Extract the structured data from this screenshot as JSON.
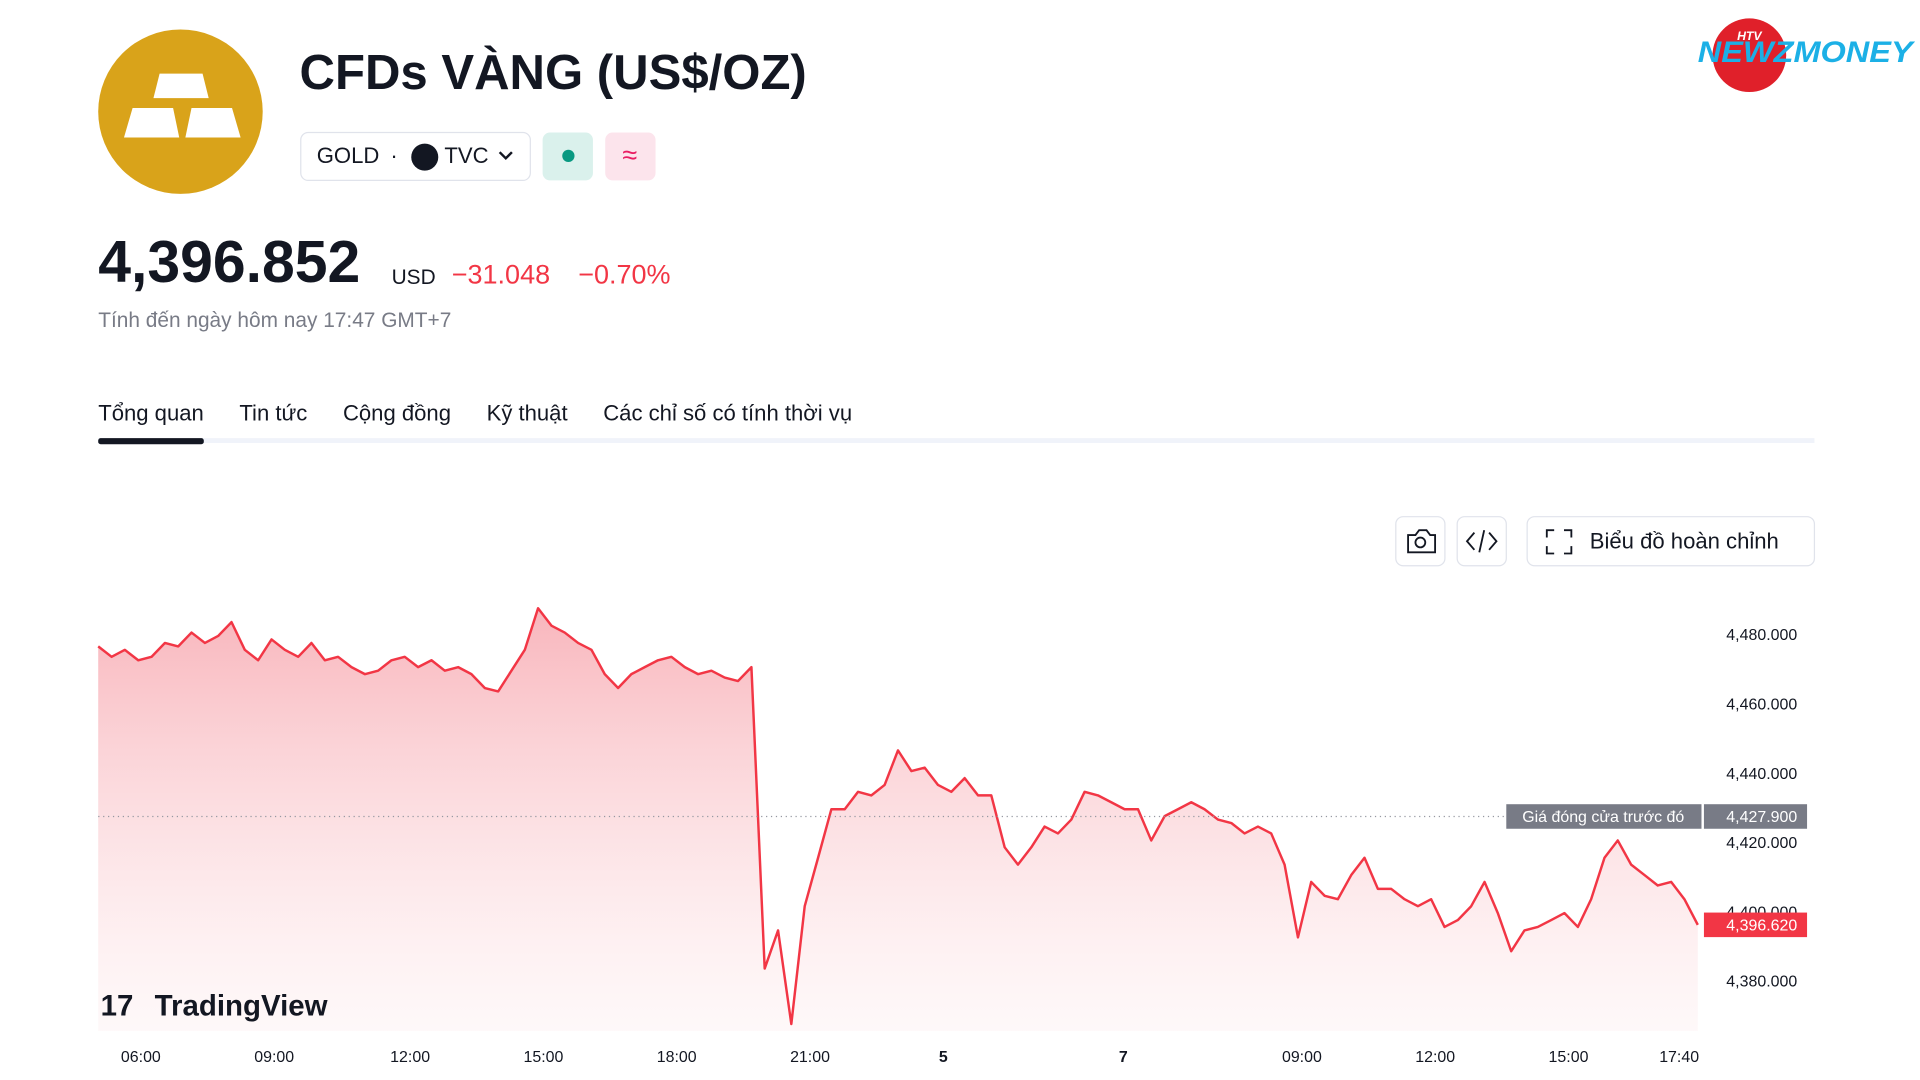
{
  "header": {
    "title": "CFDs VÀNG (US$/OZ)",
    "symbol": "GOLD",
    "exchange": "TVC",
    "badge": "≈"
  },
  "brand": {
    "name": "NEWZMONEY",
    "channel": "HTV"
  },
  "price": {
    "value": "4,396.852",
    "currency": "USD",
    "change": "−31.048",
    "change_percent": "−0.70%",
    "as_of": "Tính đến ngày hôm nay 17:47 GMT+7"
  },
  "tabs": [
    "Tổng quan",
    "Tin tức",
    "Cộng đồng",
    "Kỹ thuật",
    "Các chỉ số có tính thời vụ"
  ],
  "toolbar": {
    "full_chart": "Biểu đồ hoàn chỉnh"
  },
  "watermark": "TradingView",
  "chart_data": {
    "type": "line",
    "color": "#f23645",
    "xlim": [
      0,
      120
    ],
    "xticks": [
      {
        "value": 3.2,
        "label": "06:00"
      },
      {
        "value": 13.2,
        "label": "09:00"
      },
      {
        "value": 23.4,
        "label": "12:00"
      },
      {
        "value": 33.4,
        "label": "15:00"
      },
      {
        "value": 43.4,
        "label": "18:00"
      },
      {
        "value": 53.4,
        "label": "21:00"
      },
      {
        "value": 63.4,
        "label": "5"
      },
      {
        "value": 76.9,
        "label": "7"
      },
      {
        "value": 90.3,
        "label": "09:00"
      },
      {
        "value": 100.3,
        "label": "12:00"
      },
      {
        "value": 110.3,
        "label": "15:00"
      },
      {
        "value": 118.6,
        "label": "17:40"
      }
    ],
    "ylim": [
      4366,
      4490
    ],
    "yticks": [
      {
        "value": 4380,
        "label": "4,380.000"
      },
      {
        "value": 4400,
        "label": "4,400.000"
      },
      {
        "value": 4420,
        "label": "4,420.000"
      },
      {
        "value": 4440,
        "label": "4,440.000"
      },
      {
        "value": 4460,
        "label": "4,460.000"
      },
      {
        "value": 4480,
        "label": "4,480.000"
      }
    ],
    "previous_close": {
      "name": "Giá đóng cửa trước đó",
      "value": 4427.9,
      "label": "4,427.900"
    },
    "last_price": {
      "value": 4396.62,
      "label": "4,396.620"
    },
    "values": [
      4477,
      4474,
      4476,
      4473,
      4474,
      4478,
      4477,
      4481,
      4478,
      4480,
      4484,
      4476,
      4473,
      4479,
      4476,
      4474,
      4478,
      4473,
      4474,
      4471,
      4469,
      4470,
      4473,
      4474,
      4471,
      4473,
      4470,
      4471,
      4469,
      4465,
      4464,
      4470,
      4476,
      4488,
      4483,
      4481,
      4478,
      4476,
      4469,
      4465,
      4469,
      4471,
      4473,
      4474,
      4471,
      4469,
      4470,
      4468,
      4467,
      4471,
      4384,
      4395,
      4368,
      4402,
      4416,
      4430,
      4430,
      4435,
      4434,
      4437,
      4447,
      4441,
      4442,
      4437,
      4435,
      4439,
      4434,
      4434,
      4419,
      4414,
      4419,
      4425,
      4423,
      4427,
      4435,
      4434,
      4432,
      4430,
      4430,
      4421,
      4428,
      4430,
      4432,
      4430,
      4427,
      4426,
      4423,
      4425,
      4423,
      4414,
      4393,
      4409,
      4405,
      4404,
      4411,
      4416,
      4407,
      4407,
      4404,
      4402,
      4404,
      4396,
      4398,
      4402,
      4409,
      4400,
      4389,
      4395,
      4396,
      4398,
      4400,
      4396,
      4404,
      4416,
      4421,
      4414,
      4411,
      4408,
      4409,
      4404,
      4396.62
    ]
  }
}
